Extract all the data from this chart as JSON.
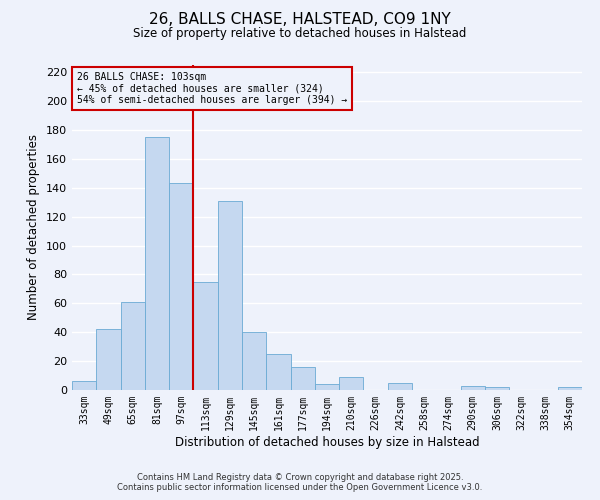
{
  "title": "26, BALLS CHASE, HALSTEAD, CO9 1NY",
  "subtitle": "Size of property relative to detached houses in Halstead",
  "xlabel": "Distribution of detached houses by size in Halstead",
  "ylabel": "Number of detached properties",
  "bar_labels": [
    "33sqm",
    "49sqm",
    "65sqm",
    "81sqm",
    "97sqm",
    "113sqm",
    "129sqm",
    "145sqm",
    "161sqm",
    "177sqm",
    "194sqm",
    "210sqm",
    "226sqm",
    "242sqm",
    "258sqm",
    "274sqm",
    "290sqm",
    "306sqm",
    "322sqm",
    "338sqm",
    "354sqm"
  ],
  "bar_values": [
    6,
    42,
    61,
    175,
    143,
    75,
    131,
    40,
    25,
    16,
    4,
    9,
    0,
    5,
    0,
    0,
    3,
    2,
    0,
    0,
    2
  ],
  "bar_color": "#c5d8f0",
  "bar_edge_color": "#6aaad4",
  "bg_color": "#eef2fb",
  "grid_color": "#ffffff",
  "vline_x": 4.5,
  "vline_color": "#cc0000",
  "annotation_text": "26 BALLS CHASE: 103sqm\n← 45% of detached houses are smaller (324)\n54% of semi-detached houses are larger (394) →",
  "annotation_box_color": "#cc0000",
  "ylim": [
    0,
    225
  ],
  "yticks": [
    0,
    20,
    40,
    60,
    80,
    100,
    120,
    140,
    160,
    180,
    200,
    220
  ],
  "footer1": "Contains HM Land Registry data © Crown copyright and database right 2025.",
  "footer2": "Contains public sector information licensed under the Open Government Licence v3.0."
}
